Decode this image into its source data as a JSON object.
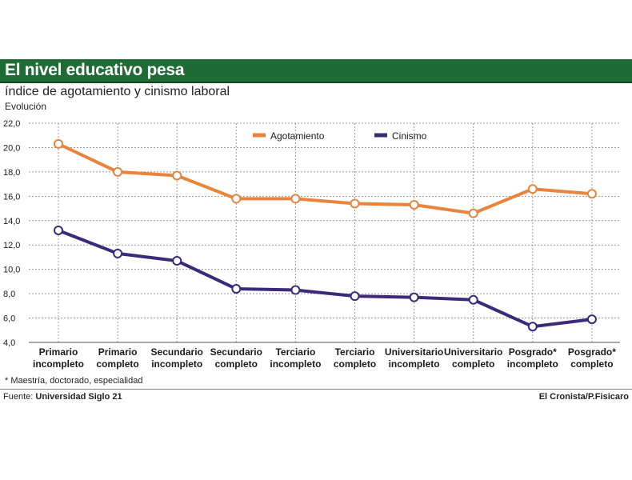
{
  "header": {
    "title": "El nivel educativo pesa",
    "subtitle": "índice de agotamiento y cinismo laboral",
    "ylabel": "Evolución"
  },
  "colors": {
    "banner": "#1f6b36",
    "agotamiento": "#e8843c",
    "cinismo": "#3b2a7a",
    "grid": "#9a9a9a"
  },
  "chart_data": {
    "type": "line",
    "title": "índice de agotamiento y cinismo laboral",
    "ylabel": "Evolución",
    "xlabel": "",
    "ylim": [
      4.0,
      22.0
    ],
    "yticks": [
      "22,0",
      "20,0",
      "18,0",
      "16,0",
      "14,0",
      "12,0",
      "10,0",
      "8,0",
      "6,0",
      "4,0"
    ],
    "ytick_values": [
      22,
      20,
      18,
      16,
      14,
      12,
      10,
      8,
      6,
      4
    ],
    "categories": [
      [
        "Primario",
        "incompleto"
      ],
      [
        "Primario",
        "completo"
      ],
      [
        "Secundario",
        "incompleto"
      ],
      [
        "Secundario",
        "completo"
      ],
      [
        "Terciario",
        "incompleto"
      ],
      [
        "Terciario",
        "completo"
      ],
      [
        "Universitario",
        "incompleto"
      ],
      [
        "Universitario",
        "completo"
      ],
      [
        "Posgrado*",
        "incompleto"
      ],
      [
        "Posgrado*",
        "completo"
      ]
    ],
    "series": [
      {
        "name": "Agotamiento",
        "color": "#e8843c",
        "values": [
          20.3,
          18.0,
          17.7,
          15.8,
          15.8,
          15.4,
          15.3,
          14.6,
          16.6,
          16.2
        ]
      },
      {
        "name": "Cinismo",
        "color": "#3b2a7a",
        "values": [
          13.2,
          11.3,
          10.7,
          8.4,
          8.3,
          7.8,
          7.7,
          7.5,
          5.3,
          5.9
        ]
      }
    ],
    "legend_position": "top-center",
    "grid": true
  },
  "footer": {
    "footnote": "* Maestría, doctorado, especialidad",
    "source_label": "Fuente:",
    "source_name": "Universidad Siglo 21",
    "credit": "El Cronista/P.Fisicaro"
  }
}
